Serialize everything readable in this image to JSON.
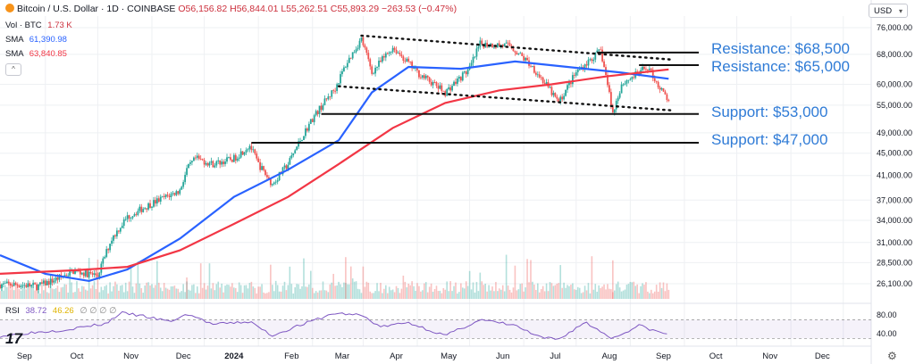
{
  "header": {
    "symbol": "Bitcoin / U.S. Dollar · 1D · COINBASE",
    "ohlc": "O56,156.82 H56,844.01 L55,262.51 C55,893.29 −263.53 (−0.47%)"
  },
  "indicators": {
    "vol_label": "Vol · BTC",
    "vol_value": "1.73 K",
    "sma1_label": "SMA",
    "sma1_value": "61,390.98",
    "sma2_label": "SMA",
    "sma2_value": "63,840.85",
    "rsi_label": "RSI",
    "rsi_value1": "38.72",
    "rsi_value2": "46.26",
    "rsi_value3": "∅ ∅ ∅ ∅"
  },
  "currency_button": "USD",
  "colors": {
    "up": "#26a69a",
    "down": "#ef5350",
    "sma_fast": "#2962ff",
    "sma_slow": "#f23645",
    "rsi": "#7e57c2",
    "annotation": "#2f7bd6",
    "grid": "#eef0f3"
  },
  "chart_data": {
    "type": "candlestick",
    "symbol": "Bitcoin / U.S. Dollar",
    "interval": "1D",
    "exchange": "COINBASE",
    "y_scale": "log",
    "ylim": [
      24500,
      78000
    ],
    "y_ticks": [
      {
        "label": "76,000.00",
        "value": 76000
      },
      {
        "label": "68,000.00",
        "value": 68000
      },
      {
        "label": "60,000.00",
        "value": 60000
      },
      {
        "label": "55,000.00",
        "value": 55000
      },
      {
        "label": "49,000.00",
        "value": 49000
      },
      {
        "label": "45,000.00",
        "value": 45000
      },
      {
        "label": "41,000.00",
        "value": 41000
      },
      {
        "label": "37,000.00",
        "value": 37000
      },
      {
        "label": "34,000.00",
        "value": 34000
      },
      {
        "label": "31,000.00",
        "value": 31000
      },
      {
        "label": "28,500.00",
        "value": 28500
      },
      {
        "label": "26,100.00",
        "value": 26100
      }
    ],
    "x_ticks": [
      "Sep",
      "Oct",
      "Nov",
      "Dec",
      "2024",
      "Feb",
      "Mar",
      "Apr",
      "May",
      "Jun",
      "Jul",
      "Aug",
      "Sep",
      "Oct",
      "Nov",
      "Dec"
    ],
    "x_ticks_bold": [
      "2024"
    ],
    "price_path": [
      [
        "2023-08-20",
        26000
      ],
      [
        "2023-09-01",
        26000
      ],
      [
        "2023-09-10",
        25800
      ],
      [
        "2023-09-20",
        26500
      ],
      [
        "2023-10-01",
        27500
      ],
      [
        "2023-10-15",
        27000
      ],
      [
        "2023-10-23",
        31500
      ],
      [
        "2023-11-01",
        34500
      ],
      [
        "2023-11-15",
        36500
      ],
      [
        "2023-12-01",
        38500
      ],
      [
        "2023-12-05",
        42000
      ],
      [
        "2023-12-10",
        44000
      ],
      [
        "2023-12-20",
        43000
      ],
      [
        "2024-01-01",
        44000
      ],
      [
        "2024-01-10",
        46500
      ],
      [
        "2024-01-15",
        43000
      ],
      [
        "2024-01-23",
        39500
      ],
      [
        "2024-02-01",
        43000
      ],
      [
        "2024-02-15",
        52000
      ],
      [
        "2024-02-28",
        59000
      ],
      [
        "2024-03-05",
        65000
      ],
      [
        "2024-03-14",
        72500
      ],
      [
        "2024-03-20",
        63000
      ],
      [
        "2024-04-01",
        70000
      ],
      [
        "2024-04-15",
        63000
      ],
      [
        "2024-05-01",
        58000
      ],
      [
        "2024-05-15",
        64000
      ],
      [
        "2024-05-21",
        71000
      ],
      [
        "2024-06-07",
        70500
      ],
      [
        "2024-06-20",
        64500
      ],
      [
        "2024-07-05",
        55500
      ],
      [
        "2024-07-15",
        63000
      ],
      [
        "2024-07-29",
        69000
      ],
      [
        "2024-08-05",
        53000
      ],
      [
        "2024-08-10",
        60000
      ],
      [
        "2024-08-25",
        64500
      ],
      [
        "2024-09-01",
        59000
      ],
      [
        "2024-09-06",
        55893
      ]
    ],
    "series": [
      {
        "name": "SMA",
        "value_label": "61,390.98",
        "points": [
          [
            "2023-08-20",
            29400
          ],
          [
            "2023-09-15",
            27200
          ],
          [
            "2023-10-10",
            26400
          ],
          [
            "2023-11-01",
            27700
          ],
          [
            "2023-12-01",
            31500
          ],
          [
            "2024-01-01",
            37500
          ],
          [
            "2024-02-01",
            42000
          ],
          [
            "2024-03-01",
            47500
          ],
          [
            "2024-03-20",
            58000
          ],
          [
            "2024-04-10",
            64500
          ],
          [
            "2024-05-10",
            64000
          ],
          [
            "2024-06-10",
            66000
          ],
          [
            "2024-07-10",
            64500
          ],
          [
            "2024-08-10",
            63000
          ],
          [
            "2024-09-06",
            61391
          ]
        ]
      },
      {
        "name": "SMA",
        "value_label": "63,840.85",
        "points": [
          [
            "2023-08-20",
            27200
          ],
          [
            "2023-10-01",
            27600
          ],
          [
            "2023-11-01",
            28000
          ],
          [
            "2023-12-01",
            30000
          ],
          [
            "2024-01-01",
            33500
          ],
          [
            "2024-02-01",
            37500
          ],
          [
            "2024-03-01",
            43000
          ],
          [
            "2024-04-01",
            50000
          ],
          [
            "2024-05-01",
            55500
          ],
          [
            "2024-06-01",
            58500
          ],
          [
            "2024-07-01",
            60000
          ],
          [
            "2024-08-01",
            62000
          ],
          [
            "2024-09-06",
            63841
          ]
        ]
      }
    ],
    "annotations": [
      {
        "label": "Resistance: $68,500",
        "value": 68500,
        "from": "2024-07-27"
      },
      {
        "label": "Resistance: $65,000",
        "value": 65000,
        "from": "2024-08-20"
      },
      {
        "label": "Support: $53,000",
        "value": 53000,
        "from": "2024-02-20"
      },
      {
        "label": "Support: $47,000",
        "value": 47000,
        "from": "2024-01-11"
      }
    ],
    "channel": {
      "upper": [
        [
          "2024-03-14",
          73500
        ],
        [
          "2024-09-08",
          66500
        ]
      ],
      "lower": [
        [
          "2024-03-01",
          59500
        ],
        [
          "2024-09-08",
          53800
        ]
      ]
    },
    "rsi": {
      "name": "RSI",
      "ylim": [
        25,
        90
      ],
      "ticks": [
        80,
        40
      ],
      "band": [
        30,
        70
      ],
      "points": [
        [
          "2023-08-20",
          35
        ],
        [
          "2023-09-05",
          42
        ],
        [
          "2023-09-25",
          48
        ],
        [
          "2023-10-20",
          62
        ],
        [
          "2023-10-28",
          85
        ],
        [
          "2023-11-10",
          78
        ],
        [
          "2023-11-25",
          66
        ],
        [
          "2023-12-06",
          82
        ],
        [
          "2023-12-20",
          60
        ],
        [
          "2024-01-10",
          66
        ],
        [
          "2024-01-23",
          36
        ],
        [
          "2024-02-05",
          55
        ],
        [
          "2024-02-28",
          84
        ],
        [
          "2024-03-14",
          80
        ],
        [
          "2024-03-25",
          55
        ],
        [
          "2024-04-10",
          64
        ],
        [
          "2024-05-01",
          36
        ],
        [
          "2024-05-21",
          70
        ],
        [
          "2024-06-10",
          58
        ],
        [
          "2024-06-24",
          32
        ],
        [
          "2024-07-05",
          28
        ],
        [
          "2024-07-20",
          65
        ],
        [
          "2024-08-05",
          30
        ],
        [
          "2024-08-20",
          58
        ],
        [
          "2024-08-30",
          45
        ],
        [
          "2024-09-06",
          38.72
        ]
      ]
    }
  }
}
